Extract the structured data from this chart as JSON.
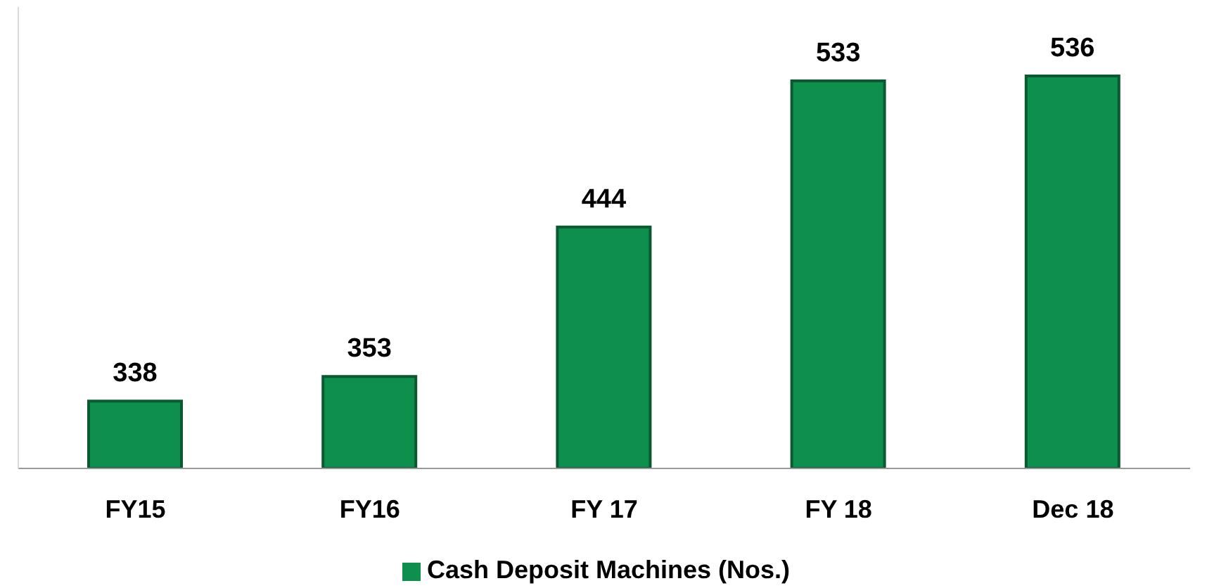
{
  "chart_data": {
    "type": "bar",
    "categories": [
      "FY15",
      "FY16",
      "FY 17",
      "FY 18",
      "Dec 18"
    ],
    "series": [
      {
        "name": "Cash Deposit Machines (Nos.)",
        "color": "#0e8f4e",
        "values": [
          338,
          353,
          444,
          533,
          536
        ]
      }
    ],
    "ylim": [
      297,
      578
    ],
    "data_labels": true,
    "legend": "bottom",
    "tick_labels": "x"
  }
}
